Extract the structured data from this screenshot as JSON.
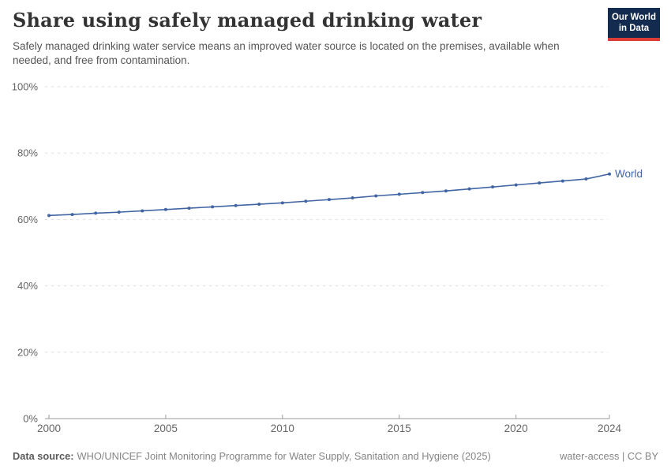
{
  "header": {
    "title": "Share using safely managed drinking water",
    "subtitle": "Safely managed drinking water service means an improved water source is located on the premises, available when needed, and free from contamination.",
    "logo": {
      "line1": "Our World",
      "line2": "in Data",
      "bg_color": "#132b4f",
      "accent_color": "#dc3b36"
    }
  },
  "chart_data": {
    "type": "line",
    "title": "Share using safely managed drinking water",
    "xlabel": "",
    "ylabel": "",
    "x": [
      2000,
      2001,
      2002,
      2003,
      2004,
      2005,
      2006,
      2007,
      2008,
      2009,
      2010,
      2011,
      2012,
      2013,
      2014,
      2015,
      2016,
      2017,
      2018,
      2019,
      2020,
      2021,
      2022,
      2023,
      2024
    ],
    "series": [
      {
        "name": "World",
        "color": "#4165a3",
        "values": [
          61.2,
          61.5,
          61.9,
          62.2,
          62.6,
          63.0,
          63.4,
          63.8,
          64.2,
          64.6,
          65.0,
          65.5,
          66.0,
          66.5,
          67.1,
          67.6,
          68.1,
          68.6,
          69.2,
          69.8,
          70.4,
          71.0,
          71.6,
          72.2,
          73.7
        ]
      }
    ],
    "ylim": [
      0,
      100
    ],
    "yticks": [
      0,
      20,
      40,
      60,
      80,
      100
    ],
    "ytick_suffix": "%",
    "xticks": [
      2000,
      2005,
      2010,
      2015,
      2020,
      2024
    ],
    "grid": "horizontal-dashed",
    "grid_color": "#dddddd",
    "axis_color": "#9a9a9a",
    "tick_label_color": "#666666",
    "legend_position": "end-of-line",
    "end_label": "World"
  },
  "footer": {
    "source_label": "Data source:",
    "source_text": "WHO/UNICEF Joint Monitoring Programme for Water Supply, Sanitation and Hygiene (2025)",
    "note_right": "water-access | CC BY"
  }
}
